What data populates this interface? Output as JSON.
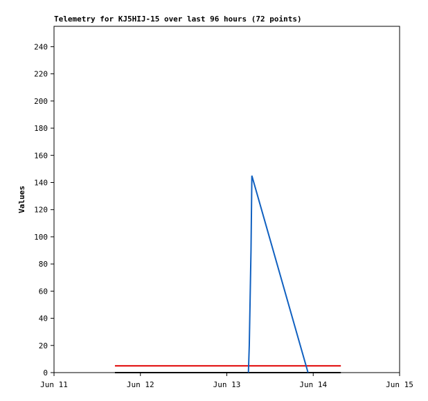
{
  "chart_data": {
    "type": "line",
    "title": "Telemetry for KJ5HIJ-15 over last 96 hours (72 points)",
    "y_label": "Values",
    "xlim": [
      0,
      4
    ],
    "xticks": [
      {
        "value": 0,
        "label": "Jun 11"
      },
      {
        "value": 1,
        "label": "Jun 12"
      },
      {
        "value": 2,
        "label": "Jun 13"
      },
      {
        "value": 3,
        "label": "Jun 14"
      },
      {
        "value": 4,
        "label": "Jun 15"
      }
    ],
    "ylim": [
      0,
      255
    ],
    "yticks": [
      0,
      20,
      40,
      60,
      80,
      100,
      120,
      140,
      160,
      180,
      200,
      220,
      240
    ],
    "series": [
      {
        "color": "#e00000",
        "x": [
          0.705,
          3.32
        ],
        "values": [
          5,
          5
        ]
      },
      {
        "color": "#000000",
        "x": [
          0.705,
          3.32
        ],
        "values": [
          0,
          0
        ]
      },
      {
        "color": "#1060c0",
        "x": [
          2.25,
          2.26,
          2.27,
          2.28,
          2.29,
          2.94
        ],
        "values": [
          0,
          20,
          55,
          90,
          145,
          0
        ]
      }
    ]
  }
}
